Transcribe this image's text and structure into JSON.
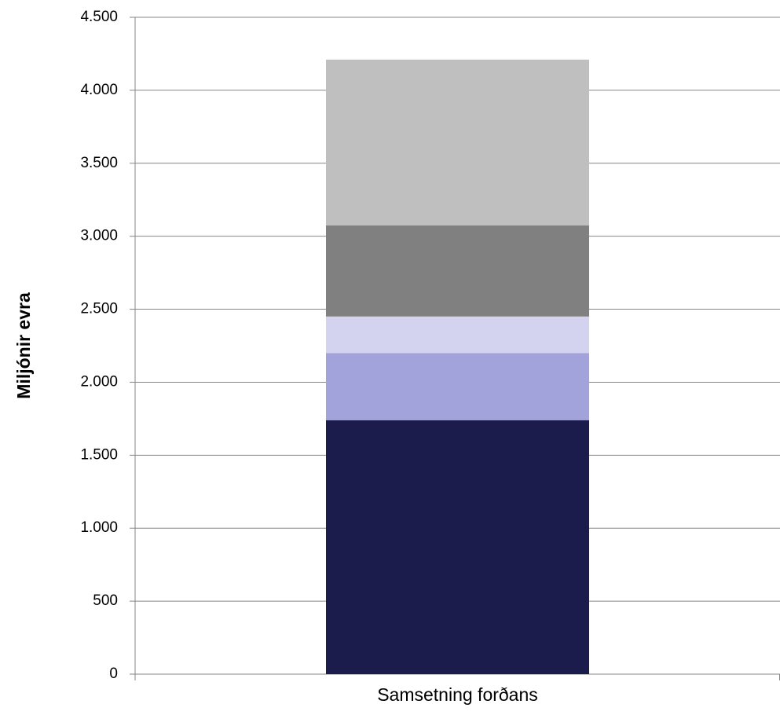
{
  "chart_data": {
    "type": "stacked-bar",
    "y_label": "Miljónir evra",
    "categories": [
      "Samsetning forðans"
    ],
    "series": [
      {
        "color": "#1c1c4c",
        "values": [
          1740
        ]
      },
      {
        "color": "#a3a3dc",
        "values": [
          460
        ]
      },
      {
        "color": "#d3d3f0",
        "values": [
          250
        ]
      },
      {
        "color": "#808080",
        "values": [
          625
        ]
      },
      {
        "color": "#bfbfbf",
        "values": [
          1135
        ]
      }
    ],
    "ylim": [
      0,
      4500
    ],
    "yticks": [
      0,
      500,
      {
        "value": 1000,
        "label": "1.000"
      },
      {
        "value": 1500,
        "label": "1.500"
      },
      {
        "value": 2000,
        "label": "2.000"
      },
      {
        "value": 2500,
        "label": "2.500"
      },
      {
        "value": 3000,
        "label": "3.000"
      },
      {
        "value": 3500,
        "label": "3.500"
      },
      {
        "value": 4000,
        "label": "4.000"
      },
      {
        "value": 4500,
        "label": "4.500"
      }
    ],
    "grid": true
  }
}
